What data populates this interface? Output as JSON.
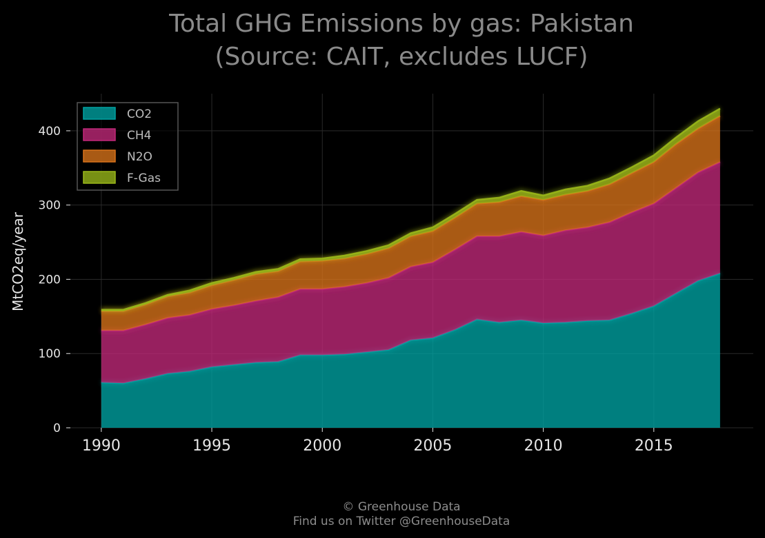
{
  "chart_data": {
    "type": "area",
    "stacked": true,
    "title": "Total GHG Emissions by gas: Pakistan",
    "subtitle": "(Source: CAIT, excludes LUCF)",
    "ylabel": "MtCO2eq/year",
    "xlim": [
      1988.6,
      2019.5
    ],
    "ylim": [
      0,
      450
    ],
    "grid": true,
    "legend_position": "top-left",
    "x_ticks": [
      1990,
      1995,
      2000,
      2005,
      2010,
      2015
    ],
    "y_ticks": [
      0,
      100,
      200,
      300,
      400
    ],
    "x": [
      1990,
      1991,
      1992,
      1993,
      1994,
      1995,
      1996,
      1997,
      1998,
      1999,
      2000,
      2001,
      2002,
      2003,
      2004,
      2005,
      2006,
      2007,
      2008,
      2009,
      2010,
      2011,
      2012,
      2013,
      2014,
      2015,
      2016,
      2017,
      2018
    ],
    "series": [
      {
        "name": "CO2",
        "color": "#00a3a3",
        "values": [
          61,
          60,
          66,
          73,
          76,
          82,
          85,
          88,
          89,
          98,
          98,
          99,
          102,
          105,
          118,
          121,
          132,
          146,
          142,
          145,
          141,
          142,
          144,
          145,
          154,
          164,
          181,
          198,
          208
        ]
      },
      {
        "name": "CH4",
        "color": "#c2297a",
        "values": [
          70,
          71,
          73,
          75,
          76,
          78,
          80,
          83,
          87,
          89,
          89,
          91,
          93,
          97,
          99,
          102,
          108,
          112,
          116,
          119,
          118,
          124,
          126,
          132,
          136,
          138,
          142,
          146,
          150
        ]
      },
      {
        "name": "N2O",
        "color": "#d9731a",
        "values": [
          26,
          26,
          27,
          29,
          30,
          32,
          34,
          36,
          35,
          37,
          38,
          38,
          39,
          40,
          41,
          42,
          43,
          44,
          46,
          48,
          48,
          48,
          49,
          51,
          53,
          56,
          59,
          59,
          62
        ]
      },
      {
        "name": "F-Gas",
        "color": "#9ab81a",
        "values": [
          2,
          2,
          2,
          2,
          3,
          3,
          3,
          3,
          3,
          3,
          3,
          4,
          4,
          4,
          4,
          5,
          5,
          5,
          6,
          7,
          6,
          7,
          7,
          8,
          8,
          9,
          9,
          10,
          10
        ]
      }
    ]
  },
  "footer": {
    "line1": "© Greenhouse Data",
    "line2": "Find us on Twitter @GreenhouseData"
  }
}
